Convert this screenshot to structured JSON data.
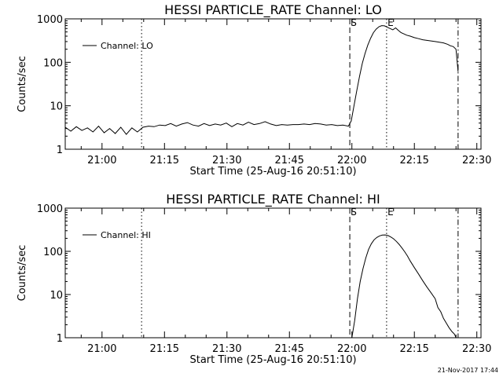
{
  "footer_text": "21-Nov-2017 17:44",
  "chart_data": [
    {
      "type": "line",
      "title": "HESSI PARTICLE_RATE Channel: LO",
      "xlabel": "Start Time (25-Aug-16 20:51:10)",
      "ylabel": "Counts/sec",
      "y_scale": "log",
      "ylim": [
        1,
        1000
      ],
      "yticks": [
        1,
        10,
        100,
        1000
      ],
      "ytick_labels": [
        "1",
        "10",
        "100",
        "1000"
      ],
      "xlim": [
        "20:51:10",
        "22:31:00"
      ],
      "xticks": [
        "21:00",
        "21:15",
        "21:30",
        "21:45",
        "22:00",
        "22:15",
        "22:30"
      ],
      "legend": {
        "label": "Channel: LO",
        "position": "top-left"
      },
      "markers": [
        {
          "time": "21:09:30",
          "style": "dotted",
          "label": ""
        },
        {
          "time": "21:59:30",
          "style": "dashed",
          "label": "S"
        },
        {
          "time": "22:08:20",
          "style": "dotted",
          "label": "E"
        },
        {
          "time": "22:25:30",
          "style": "dashdot",
          "label": ""
        }
      ],
      "series": [
        {
          "name": "Channel: LO",
          "x": [
            "20:51:10",
            "20:52:30",
            "20:53:50",
            "20:55:10",
            "20:56:30",
            "20:57:50",
            "20:59:10",
            "21:00:30",
            "21:01:50",
            "21:03:10",
            "21:04:30",
            "21:05:50",
            "21:07:10",
            "21:08:30",
            "21:09:50",
            "21:11:10",
            "21:12:30",
            "21:13:50",
            "21:15:10",
            "21:16:30",
            "21:17:50",
            "21:19:10",
            "21:20:30",
            "21:21:50",
            "21:23:10",
            "21:24:30",
            "21:25:50",
            "21:27:10",
            "21:28:30",
            "21:29:50",
            "21:31:10",
            "21:32:30",
            "21:33:50",
            "21:35:10",
            "21:36:30",
            "21:37:50",
            "21:39:10",
            "21:40:30",
            "21:41:50",
            "21:43:10",
            "21:44:30",
            "21:45:50",
            "21:47:10",
            "21:48:30",
            "21:49:50",
            "21:51:10",
            "21:52:30",
            "21:53:50",
            "21:55:10",
            "21:56:30",
            "21:57:50",
            "21:59:10",
            "21:59:50",
            "22:00:30",
            "22:01:10",
            "22:01:50",
            "22:02:30",
            "22:03:10",
            "22:03:50",
            "22:04:30",
            "22:05:10",
            "22:05:50",
            "22:06:30",
            "22:07:10",
            "22:07:50",
            "22:08:30",
            "22:09:10",
            "22:09:50",
            "22:10:30",
            "22:11:10",
            "22:11:50",
            "22:12:30",
            "22:13:10",
            "22:14:00",
            "22:15:00",
            "22:16:00",
            "22:17:00",
            "22:18:00",
            "22:19:00",
            "22:20:00",
            "22:21:00",
            "22:22:00",
            "22:23:00",
            "22:23:40",
            "22:24:20",
            "22:25:00",
            "22:25:30"
          ],
          "values": [
            3.2,
            2.6,
            3.3,
            2.7,
            3.1,
            2.5,
            3.4,
            2.4,
            3.0,
            2.3,
            3.2,
            2.2,
            3.1,
            2.5,
            3.2,
            3.4,
            3.3,
            3.6,
            3.5,
            3.9,
            3.4,
            3.8,
            4.1,
            3.6,
            3.4,
            3.9,
            3.5,
            3.8,
            3.6,
            4.0,
            3.3,
            3.9,
            3.6,
            4.2,
            3.7,
            3.9,
            4.3,
            3.8,
            3.5,
            3.7,
            3.6,
            3.7,
            3.7,
            3.8,
            3.7,
            3.9,
            3.8,
            3.6,
            3.7,
            3.5,
            3.6,
            3.4,
            4.5,
            10,
            22,
            48,
            95,
            160,
            250,
            360,
            480,
            580,
            660,
            700,
            690,
            640,
            600,
            560,
            620,
            540,
            480,
            450,
            420,
            400,
            370,
            350,
            330,
            320,
            310,
            300,
            290,
            280,
            260,
            240,
            230,
            200,
            60
          ]
        }
      ]
    },
    {
      "type": "line",
      "title": "HESSI PARTICLE_RATE Channel: HI",
      "xlabel": "Start Time (25-Aug-16 20:51:10)",
      "ylabel": "Counts/sec",
      "y_scale": "log",
      "ylim": [
        1,
        1000
      ],
      "yticks": [
        1,
        10,
        100,
        1000
      ],
      "ytick_labels": [
        "1",
        "10",
        "100",
        "1000"
      ],
      "xlim": [
        "20:51:10",
        "22:31:00"
      ],
      "xticks": [
        "21:00",
        "21:15",
        "21:30",
        "21:45",
        "22:00",
        "22:15",
        "22:30"
      ],
      "legend": {
        "label": "Channel: HI",
        "position": "top-left"
      },
      "markers": [
        {
          "time": "21:09:30",
          "style": "dotted",
          "label": ""
        },
        {
          "time": "21:59:30",
          "style": "dashed",
          "label": "S"
        },
        {
          "time": "22:08:20",
          "style": "dotted",
          "label": "E"
        },
        {
          "time": "22:25:30",
          "style": "dashdot",
          "label": ""
        }
      ],
      "series": [
        {
          "name": "Channel: HI",
          "x": [
            "22:00:00",
            "22:00:40",
            "22:01:20",
            "22:02:00",
            "22:02:40",
            "22:03:20",
            "22:04:00",
            "22:04:40",
            "22:05:20",
            "22:06:00",
            "22:06:40",
            "22:07:20",
            "22:08:00",
            "22:08:40",
            "22:09:20",
            "22:10:00",
            "22:10:40",
            "22:11:20",
            "22:12:00",
            "22:12:40",
            "22:13:20",
            "22:14:00",
            "22:15:00",
            "22:16:00",
            "22:17:00",
            "22:18:00",
            "22:19:00",
            "22:20:00",
            "22:20:40",
            "22:21:20",
            "22:22:00",
            "22:22:40",
            "22:23:20",
            "22:24:00",
            "22:24:40",
            "22:25:00"
          ],
          "values": [
            1.0,
            2.5,
            8,
            20,
            40,
            70,
            110,
            150,
            185,
            210,
            228,
            238,
            240,
            232,
            215,
            195,
            170,
            145,
            120,
            98,
            78,
            60,
            42,
            30,
            21,
            15,
            11,
            8,
            5,
            4,
            2.8,
            2.2,
            1.7,
            1.4,
            1.2,
            1.0
          ]
        }
      ]
    }
  ]
}
